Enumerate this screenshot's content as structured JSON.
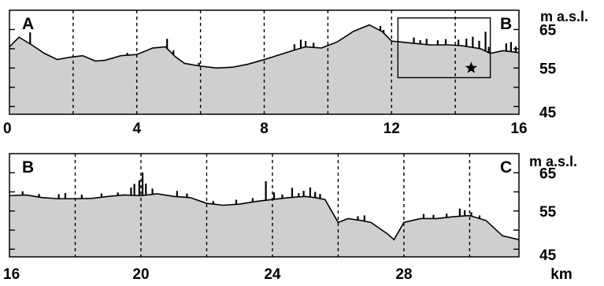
{
  "chart_data": [
    {
      "type": "area",
      "panel": "upper",
      "start_label": "A",
      "end_label": "B",
      "xlim": [
        0,
        16
      ],
      "x_ticks": [
        0,
        4,
        8,
        12,
        16
      ],
      "x_tick_labels": [
        "0",
        "4",
        "8",
        "12",
        "16"
      ],
      "x_dashed_gridlines": [
        2,
        4,
        6,
        8,
        10,
        12,
        14
      ],
      "ylim": [
        43,
        70
      ],
      "y_ticks": [
        65,
        55,
        45
      ],
      "y_tick_labels": [
        "65",
        "55",
        "45"
      ],
      "y_minor_ticks": [
        50,
        60,
        70
      ],
      "ylabel": "m a.s.l.",
      "inset_box": {
        "x": [
          12.2,
          15.1
        ],
        "y": [
          52.5,
          68
        ]
      },
      "star_marker": {
        "x": 14.5,
        "y": 55
      },
      "x": [
        0,
        0.3,
        0.7,
        1.1,
        1.5,
        1.9,
        2.3,
        2.7,
        3.0,
        3.5,
        4.0,
        4.5,
        4.9,
        5.2,
        5.5,
        6.0,
        6.5,
        7.0,
        7.5,
        8.0,
        8.5,
        9.0,
        9.3,
        9.8,
        10.3,
        10.8,
        11.3,
        11.7,
        12.0,
        12.6,
        13.2,
        13.8,
        14.2,
        14.8,
        15.1,
        15.5,
        16
      ],
      "y": [
        60.5,
        63,
        61,
        58.8,
        57.2,
        57.8,
        58.2,
        56.8,
        57,
        58.2,
        58.5,
        60.2,
        60.5,
        58,
        56.2,
        55.5,
        55,
        55.2,
        56,
        57.2,
        58.5,
        59.8,
        60.5,
        60.2,
        61.8,
        64.5,
        66.2,
        64.5,
        62,
        61.5,
        61,
        61,
        60.8,
        60,
        58.8,
        59.5,
        59
      ],
      "spikes_x": [
        0.65,
        3.7,
        4.95,
        5.15,
        5.95,
        8.95,
        9.15,
        9.3,
        9.55,
        11.65,
        11.75,
        12.7,
        12.9,
        13.1,
        13.45,
        13.7,
        14.1,
        14.35,
        14.55,
        14.75,
        14.95,
        15.05,
        15.6,
        15.75,
        15.9
      ],
      "spikes_h": [
        3,
        0.6,
        2.5,
        1.2,
        0.8,
        1.5,
        2.2,
        1.5,
        1.2,
        1.2,
        0.8,
        1.5,
        1,
        1.5,
        1.2,
        1.5,
        1.5,
        2,
        2.8,
        2,
        5,
        1.5,
        2,
        2.5,
        1.5
      ]
    },
    {
      "type": "area",
      "panel": "lower",
      "start_label": "B",
      "end_label": "C",
      "xlim": [
        16,
        31.5
      ],
      "x_ticks": [
        16,
        20,
        24,
        28
      ],
      "x_tick_labels": [
        "16",
        "20",
        "24",
        "28"
      ],
      "x_unit_label": "km",
      "x_dashed_gridlines": [
        18,
        20,
        22,
        24,
        26,
        28,
        30
      ],
      "ylim": [
        43,
        70
      ],
      "y_ticks": [
        65,
        55,
        45
      ],
      "y_tick_labels": [
        "65",
        "55",
        "45"
      ],
      "y_minor_ticks": [
        50,
        60,
        70
      ],
      "ylabel": "m a.s.l.",
      "x": [
        16,
        16.5,
        17,
        17.5,
        18,
        18.5,
        19,
        19.5,
        20,
        20.5,
        21,
        21.5,
        22,
        22.5,
        23,
        23.5,
        24,
        24.5,
        25,
        25.3,
        25.6,
        26,
        26.3,
        26.7,
        27,
        27.5,
        27.7,
        28,
        28.5,
        29,
        29.5,
        30,
        30.5,
        31,
        31.5
      ],
      "y": [
        59,
        59.2,
        58.5,
        58.2,
        58.2,
        58.3,
        58.8,
        59.2,
        59,
        59.5,
        58.8,
        58.5,
        57,
        56.5,
        56.8,
        57.5,
        58,
        58.5,
        58.8,
        58.5,
        58,
        52,
        53,
        52.5,
        52,
        49,
        47.5,
        52,
        53,
        53,
        53.5,
        53.8,
        52.5,
        48.5,
        47.5
      ],
      "spikes_x": [
        16.4,
        16.9,
        17.5,
        17.7,
        18.2,
        18.8,
        19.3,
        19.7,
        19.8,
        19.95,
        20.05,
        20.15,
        20.35,
        21.1,
        21.4,
        22.2,
        22.9,
        23.4,
        23.8,
        24.05,
        24.3,
        24.6,
        24.8,
        24.95,
        25.15,
        25.3,
        25.45,
        26.6,
        26.8,
        28.6,
        28.9,
        29.3,
        29.7,
        29.85,
        30.05,
        30.3
      ],
      "spikes_h": [
        1,
        0.8,
        1.2,
        1.5,
        1,
        1,
        0.8,
        2,
        3,
        4,
        6,
        3,
        1.5,
        1.5,
        1,
        0.8,
        1.2,
        1,
        5,
        1.8,
        1,
        2.5,
        1,
        1.5,
        2.5,
        1.5,
        1.2,
        1,
        1.5,
        1.2,
        1,
        1,
        2,
        1.5,
        1,
        0.8
      ]
    }
  ]
}
